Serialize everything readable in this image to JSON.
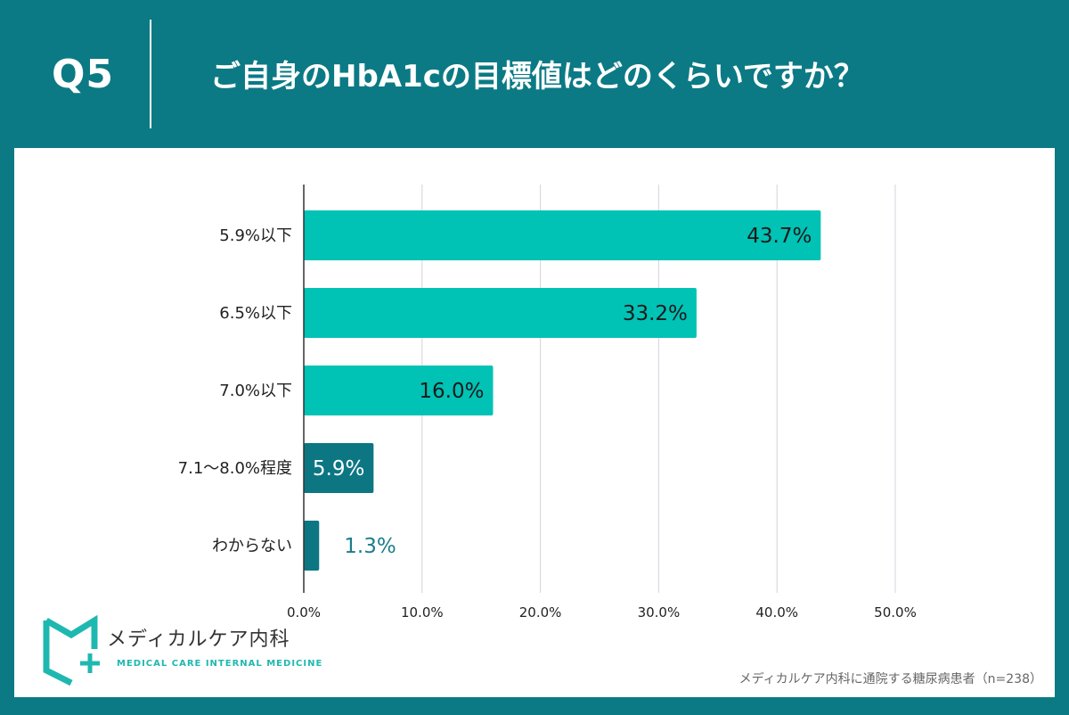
{
  "header": {
    "qnum": "Q5",
    "title": "ご自身のHbA1cの目標値はどのくらいですか？"
  },
  "logo": {
    "name": "メディカルケア内科",
    "subtitle": "MEDICAL CARE INTERNAL MEDICINE"
  },
  "source": "メディカルケア内科に通院する糖尿病患者（n=238）",
  "colors": {
    "background": "#0b7a85",
    "bar_primary": "#00c2b5",
    "bar_secondary": "#0c7683",
    "grid": "#d7d1dc",
    "label_outside": "#1c7d8a"
  },
  "chart_data": {
    "type": "bar",
    "orientation": "horizontal",
    "title": "",
    "xlabel": "",
    "ylabel": "",
    "xlim": [
      0,
      50
    ],
    "grid": true,
    "categories": [
      "5.9%以下",
      "6.5%以下",
      "7.0%以下",
      "7.1〜8.0%程度",
      "わからない"
    ],
    "values": [
      43.7,
      33.2,
      16.0,
      5.9,
      1.3
    ],
    "value_labels": [
      "43.7%",
      "33.2%",
      "16.0%",
      "5.9%",
      "1.3%"
    ],
    "ticks": [
      0,
      10,
      20,
      30,
      40,
      50
    ],
    "tick_labels": [
      "0.0%",
      "10.0%",
      "20.0%",
      "30.0%",
      "40.0%",
      "50.0%"
    ]
  }
}
